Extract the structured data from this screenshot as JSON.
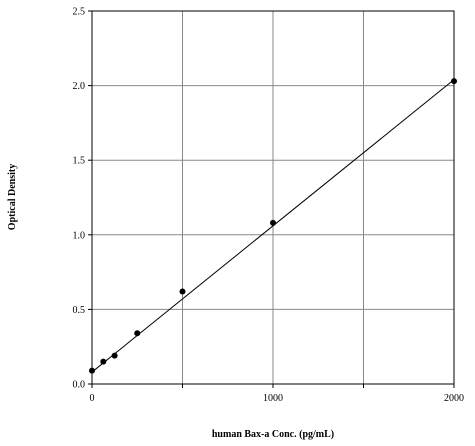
{
  "chart_data": {
    "type": "scatter",
    "x_label": "human Bax-a Conc. (pg/mL)",
    "y_label": "Optical Density",
    "x": [
      0,
      62.5,
      125,
      250,
      500,
      1000,
      2000
    ],
    "values": [
      0.09,
      0.15,
      0.19,
      0.34,
      0.62,
      1.08,
      2.03
    ],
    "color": "#000000",
    "fit_line": {
      "x": [
        0,
        2000
      ],
      "values": [
        0.08,
        2.04
      ]
    },
    "xlim": [
      0,
      2000
    ],
    "ylim": [
      0,
      2.5
    ],
    "xticks": [
      0,
      1000,
      2000
    ],
    "xminorticks": [
      500,
      1500
    ],
    "yticks": [
      {
        "value": 0,
        "label": "0.0"
      },
      0.5,
      {
        "value": 1,
        "label": "1.0"
      },
      1.5,
      {
        "value": 2,
        "label": "2.0"
      },
      2.5
    ],
    "grid": true
  }
}
